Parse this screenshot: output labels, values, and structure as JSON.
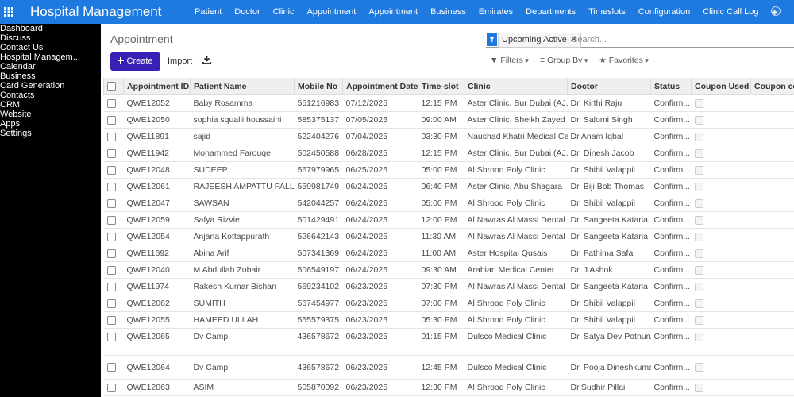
{
  "topbar": {
    "app_title": "Hospital Management",
    "menu": [
      "Patient",
      "Doctor",
      "Clinic",
      "Appointment",
      "Appointment",
      "Business",
      "Emirates",
      "Departments",
      "Timeslots",
      "Configuration",
      "Clinic Call Log"
    ],
    "add": "+"
  },
  "sidebar": {
    "items": [
      "Dashboard",
      "Discuss",
      "Contact Us",
      "Hospital Managem...",
      "Calendar",
      "Business",
      "Card Generation",
      "Contacts",
      "CRM",
      "Website",
      "Apps",
      "Settings"
    ]
  },
  "control_panel": {
    "breadcrumb": "Appointment",
    "create": "Create",
    "import": "Import",
    "facet": "Upcoming Active",
    "search_placeholder": "Search...",
    "filters": "Filters",
    "group_by": "Group By",
    "favorites": "Favorites"
  },
  "table": {
    "headers": [
      "Appointment ID...",
      "Patient Name",
      "Mobile No",
      "Appointment Date...",
      "Time-slot",
      "Clinic",
      "Doctor",
      "Status",
      "Coupon Used",
      "Coupon cod"
    ],
    "rows": [
      [
        "QWE12052",
        "Baby Rosamma",
        "551216983",
        "07/12/2025",
        "12:15 PM",
        "Aster Clinic, Bur Dubai (AJ...",
        "Dr. Kirthi Raju",
        "Confirm..."
      ],
      [
        "QWE12050",
        "sophia squalli houssaini",
        "585375137",
        "07/05/2025",
        "09:00 AM",
        "Aster Clinic, Sheikh Zayed ...",
        "Dr. Salomi Singh",
        "Confirm..."
      ],
      [
        "QWE11891",
        "sajid",
        "522404276",
        "07/04/2025",
        "03:30 PM",
        "Naushad Khatri Medical Ce...",
        "Dr.Anam Iqbal",
        "Confirm..."
      ],
      [
        "QWE11942",
        "Mohammed Farouqe",
        "502450588",
        "06/28/2025",
        "12:15 PM",
        "Aster Clinic, Bur Dubai (AJ...",
        "Dr. Dinesh Jacob",
        "Confirm..."
      ],
      [
        "QWE12048",
        "SUDEEP",
        "567979965",
        "06/25/2025",
        "05:00 PM",
        "Al Shrooq Poly Clinic",
        "Dr. Shibil Valappil",
        "Confirm..."
      ],
      [
        "QWE12061",
        "RAJEESH AMPATTU PALLI...",
        "559981749",
        "06/24/2025",
        "06:40 PM",
        "Aster Clinic, Abu Shagara",
        "Dr. Biji Bob Thomas",
        "Confirm..."
      ],
      [
        "QWE12047",
        "SAWSAN",
        "542044257",
        "06/24/2025",
        "05:00 PM",
        "Al Shrooq Poly Clinic",
        "Dr. Shibil Valappil",
        "Confirm..."
      ],
      [
        "QWE12059",
        "Safya Rizvie",
        "501429491",
        "06/24/2025",
        "12:00 PM",
        "Al Nawras Al Massi Dental ...",
        "Dr. Sangeeta Kataria",
        "Confirm..."
      ],
      [
        "QWE12054",
        "Anjana Kottappurath",
        "526642143",
        "06/24/2025",
        "11:30 AM",
        "Al Nawras Al Massi Dental ...",
        "Dr. Sangeeta Kataria",
        "Confirm..."
      ],
      [
        "QWE11692",
        "Abina Arif",
        "507341369",
        "06/24/2025",
        "11:00 AM",
        "Aster Hospital Qusais",
        "Dr. Fathima Safa",
        "Confirm..."
      ],
      [
        "QWE12040",
        "M Abdullah Zubair",
        "506549197",
        "06/24/2025",
        "09:30 AM",
        "Arabian Medical Center",
        "Dr. J Ashok",
        "Confirm..."
      ],
      [
        "QWE11974",
        "Rakesh Kumar Bishan",
        "569234102",
        "06/23/2025",
        "07:30 PM",
        "Al Nawras Al Massi Dental ...",
        "Dr. Sangeeta Kataria",
        "Confirm..."
      ],
      [
        "QWE12062",
        "SUMITH",
        "567454977",
        "06/23/2025",
        "07:00 PM",
        "Al Shrooq Poly Clinic",
        "Dr. Shibil Valappil",
        "Confirm..."
      ],
      [
        "QWE12055",
        "HAMEED ULLAH",
        "555579375",
        "06/23/2025",
        "05:30 PM",
        "Al Shrooq Poly Clinic",
        "Dr. Shibil Valappil",
        "Confirm..."
      ],
      [
        "QWE12065",
        "Dv Camp",
        "436578672",
        "06/23/2025",
        "01:15 PM",
        "Dulsco Medical Clinic",
        "Dr. Satya Dev Potnuru",
        "Confirm..."
      ],
      [
        "QWE12064",
        "Dv Camp",
        "436578672",
        "06/23/2025",
        "12:45 PM",
        "Dulsco Medical Clinic",
        "Dr. Pooja Dineshkumar",
        "Confirm..."
      ],
      [
        "QWE12063",
        "ASIM",
        "505870092",
        "06/23/2025",
        "12:30 PM",
        "Al Shrooq Poly Clinic",
        "Dr.Sudhir Pillai",
        "Confirm..."
      ]
    ]
  }
}
